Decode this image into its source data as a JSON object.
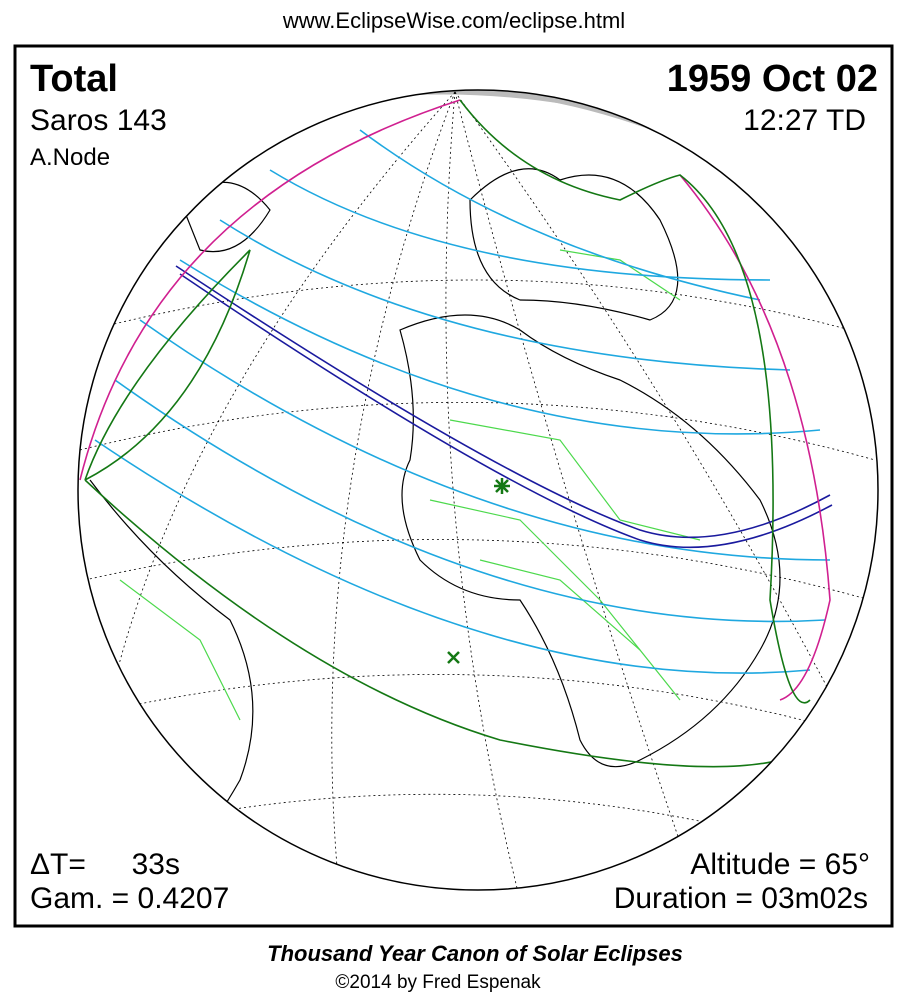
{
  "header": {
    "url": "www.EclipseWise.com/eclipse.html"
  },
  "map": {
    "eclipse_type": "Total",
    "date": "1959 Oct 02",
    "saros": "Saros 143",
    "time": "12:27 TD",
    "node": "A.Node",
    "delta_t_label": "ΔT=",
    "delta_t_value": "33s",
    "gamma": "Gam. = 0.4207",
    "altitude": "Altitude = 65°",
    "duration": "Duration = 03m02s"
  },
  "footer": {
    "title": "Thousand Year Canon of Solar Eclipses",
    "credit": "©2014 by Fred Espenak"
  }
}
